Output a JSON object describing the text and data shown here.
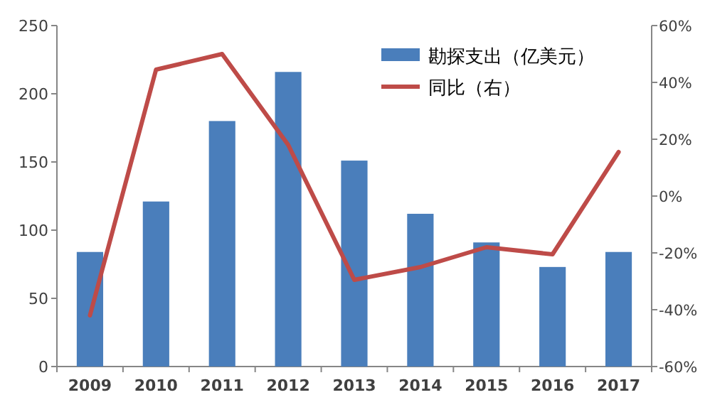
{
  "chart_data": {
    "type": "bar",
    "categories": [
      "2009",
      "2010",
      "2011",
      "2012",
      "2013",
      "2014",
      "2015",
      "2016",
      "2017"
    ],
    "series": [
      {
        "name": "勘探支出（亿美元）",
        "type": "bar",
        "color": "#4a7ebb",
        "values": [
          84,
          121,
          180,
          216,
          151,
          112,
          91,
          73,
          84
        ]
      },
      {
        "name": "同比（右）",
        "type": "line",
        "axis": "y2",
        "color": "#be4b48",
        "values": [
          -42,
          44.5,
          50,
          18,
          -29.5,
          -25,
          -18,
          -20.5,
          15.5
        ]
      }
    ],
    "ylim": [
      0,
      250
    ],
    "yticks": [
      0,
      50,
      100,
      150,
      200,
      250
    ],
    "y2lim": [
      -60,
      60
    ],
    "y2ticks": [
      {
        "value": -60,
        "label": "-60%"
      },
      {
        "value": -40,
        "label": "-40%"
      },
      {
        "value": -20,
        "label": "-20%"
      },
      {
        "value": 0,
        "label": "0%"
      },
      {
        "value": 20,
        "label": "20%"
      },
      {
        "value": 40,
        "label": "40%"
      },
      {
        "value": 60,
        "label": "60%"
      }
    ],
    "legend": "top right",
    "grid": false
  }
}
